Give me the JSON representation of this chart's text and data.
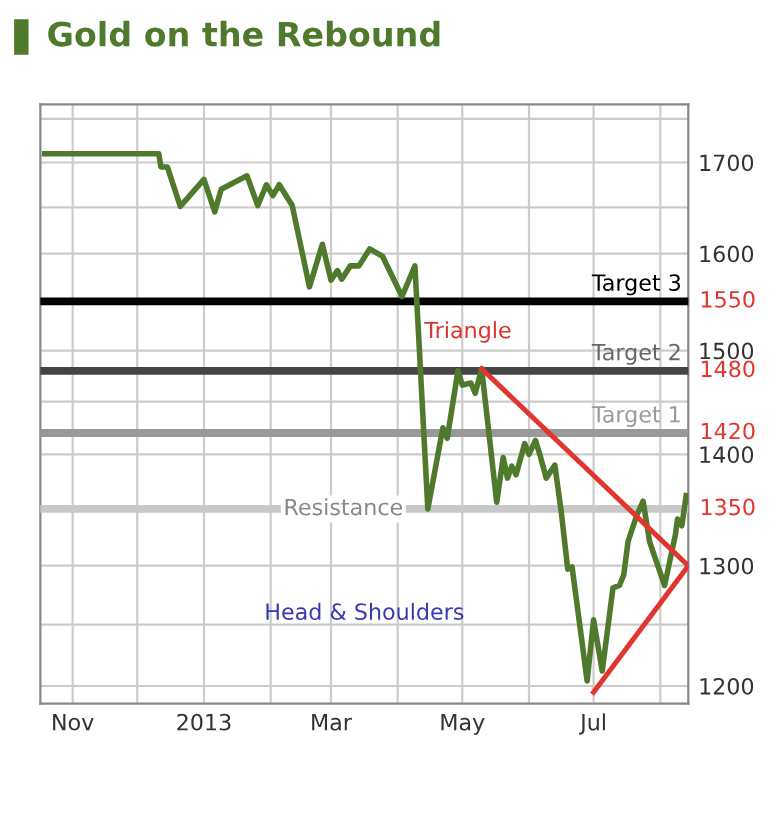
{
  "chart_data": {
    "type": "line",
    "title": "Gold on the Rebound",
    "xlim": [
      "2012-10-17",
      "2013-08-14"
    ],
    "xticks": [
      {
        "value": "2012-11-01",
        "label": "Nov"
      },
      {
        "value": "2012-12-01",
        "label": null
      },
      {
        "value": "2013-01-01",
        "label": "2013"
      },
      {
        "value": "2013-02-01",
        "label": null
      },
      {
        "value": "2013-03-01",
        "label": "Mar"
      },
      {
        "value": "2013-04-01",
        "label": null
      },
      {
        "value": "2013-05-01",
        "label": "May"
      },
      {
        "value": "2013-06-01",
        "label": null
      },
      {
        "value": "2013-07-01",
        "label": "Jul"
      },
      {
        "value": "2013-08-01",
        "label": null
      }
    ],
    "log": "y",
    "ylim": [
      1186,
      1767
    ],
    "yticks": [
      1200,
      {
        "value": 1250,
        "label": null
      },
      1300,
      {
        "value": 1350,
        "label": null
      },
      1400,
      {
        "value": 1450,
        "label": null
      },
      1500,
      {
        "value": 1550,
        "label": null
      },
      1600,
      {
        "value": 1650,
        "label": null
      },
      1700,
      {
        "value": 1750,
        "label": null
      }
    ],
    "grid": true,
    "legend": false,
    "marker": "none",
    "line_style": "solid",
    "series": [
      {
        "color": "#4f7a2c",
        "x": [
          "2012-10-19",
          "2012-12-11",
          "2012-12-12",
          "2012-12-15",
          "2012-12-21",
          "2013-01-01",
          "2013-01-06",
          "2013-01-09",
          "2013-01-21",
          "2013-01-26",
          "2013-01-30",
          "2013-02-02",
          "2013-02-05",
          "2013-02-11",
          "2013-02-19",
          "2013-02-25",
          "2013-03-01",
          "2013-03-04",
          "2013-03-06",
          "2013-03-10",
          "2013-03-14",
          "2013-03-19",
          "2013-03-25",
          "2013-04-03",
          "2013-04-09",
          "2013-04-15",
          "2013-04-22",
          "2013-04-24",
          "2013-04-29",
          "2013-05-01",
          "2013-05-05",
          "2013-05-07",
          "2013-05-10",
          "2013-05-17",
          "2013-05-20",
          "2013-05-22",
          "2013-05-24",
          "2013-05-26",
          "2013-05-30",
          "2013-06-01",
          "2013-06-04",
          "2013-06-06",
          "2013-06-09",
          "2013-06-13",
          "2013-06-16",
          "2013-06-19",
          "2013-06-21",
          "2013-06-25",
          "2013-06-28",
          "2013-07-01",
          "2013-07-05",
          "2013-07-10",
          "2013-07-13",
          "2013-07-15",
          "2013-07-17",
          "2013-07-21",
          "2013-07-24",
          "2013-07-27",
          "2013-08-03",
          "2013-08-08",
          "2013-08-09",
          "2013-08-11",
          "2013-08-13"
        ],
        "values": [
          1710,
          1710,
          1695,
          1695,
          1651,
          1681,
          1645,
          1670,
          1685,
          1652,
          1675,
          1663,
          1675,
          1652,
          1565,
          1610,
          1572,
          1582,
          1573,
          1587,
          1587,
          1605,
          1597,
          1555,
          1587,
          1350,
          1425,
          1415,
          1480,
          1466,
          1468,
          1458,
          1482,
          1356,
          1397,
          1378,
          1389,
          1381,
          1410,
          1400,
          1413,
          1400,
          1378,
          1390,
          1347,
          1297,
          1299,
          1244,
          1204,
          1254,
          1212,
          1281,
          1283,
          1292,
          1321,
          1344,
          1357,
          1321,
          1283,
          1327,
          1341,
          1335,
          1362
        ]
      },
      {
        "color": "#e0362f",
        "x": [
          "2013-05-10",
          "2013-08-14"
        ],
        "values": [
          1482,
          1300
        ]
      },
      {
        "color": "#e0362f",
        "x": [
          "2013-07-01",
          "2013-08-14"
        ],
        "values": [
          1195,
          1300
        ]
      }
    ],
    "ref_lines": [
      {
        "axis": "y",
        "value": 1550,
        "label": "Target 3",
        "color": "#000000"
      },
      {
        "axis": "y",
        "value": 1480,
        "label": "Target 2",
        "color": "#444444"
      },
      {
        "axis": "y",
        "value": 1420,
        "label": "Target 1",
        "color": "#999999"
      },
      {
        "axis": "y",
        "value": 1350,
        "label": "Resistance",
        "color": "#c8c8c8"
      }
    ],
    "annotations": [
      "Triangle",
      "Head & Shoulders",
      {
        "text": "1550",
        "x": "2013-08-14",
        "y": 1550
      },
      {
        "text": "1480",
        "x": "2013-08-14",
        "y": 1480
      },
      {
        "text": "1420",
        "x": "2013-08-14",
        "y": 1420
      },
      {
        "text": "1350",
        "x": "2013-08-14",
        "y": 1350
      }
    ]
  }
}
